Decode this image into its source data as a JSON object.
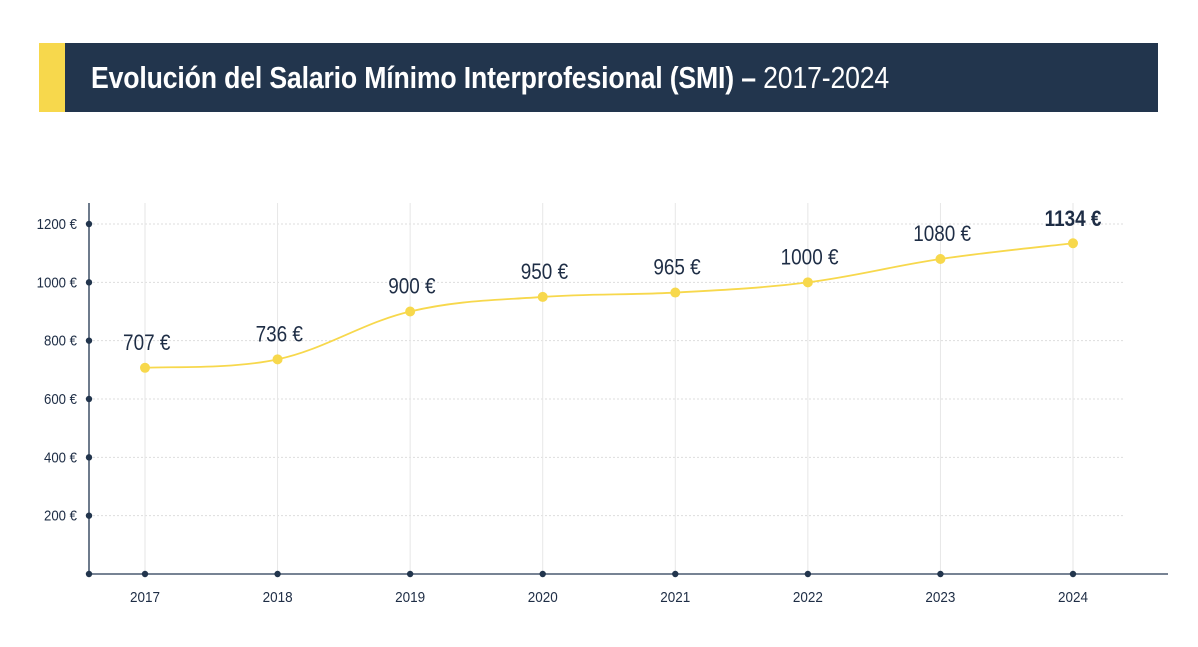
{
  "header": {
    "title_main": "Evolución del Salario Mínimo Interprofesional (SMI) –",
    "title_years": "2017-2024",
    "accent_color": "#f7d84c",
    "background_color": "#22354d"
  },
  "chart_data": {
    "type": "line",
    "title": "Evolución del Salario Mínimo Interprofesional (SMI) – 2017-2024",
    "xlabel": "",
    "ylabel": "",
    "categories": [
      "2017",
      "2018",
      "2019",
      "2020",
      "2021",
      "2022",
      "2023",
      "2024"
    ],
    "series": [
      {
        "name": "SMI",
        "values": [
          707,
          736,
          900,
          950,
          965,
          1000,
          1080,
          1134
        ],
        "labels": [
          "707 €",
          "736 €",
          "900 €",
          "950 €",
          "965 €",
          "1000 €",
          "1080 €",
          "1134 €"
        ],
        "color": "#f7d84c",
        "highlight_last": true
      }
    ],
    "yticks": [
      200,
      400,
      600,
      800,
      1000,
      1200
    ],
    "ytick_labels": [
      "200 €",
      "400 €",
      "600 €",
      "800 €",
      "1000 €",
      "1200 €"
    ],
    "ylim": [
      0,
      1200
    ],
    "grid": true,
    "smooth": true,
    "legend": "none",
    "axis_color": "#22354d",
    "label_color": "#1e2d45",
    "grid_color": "#e6e6e6"
  }
}
